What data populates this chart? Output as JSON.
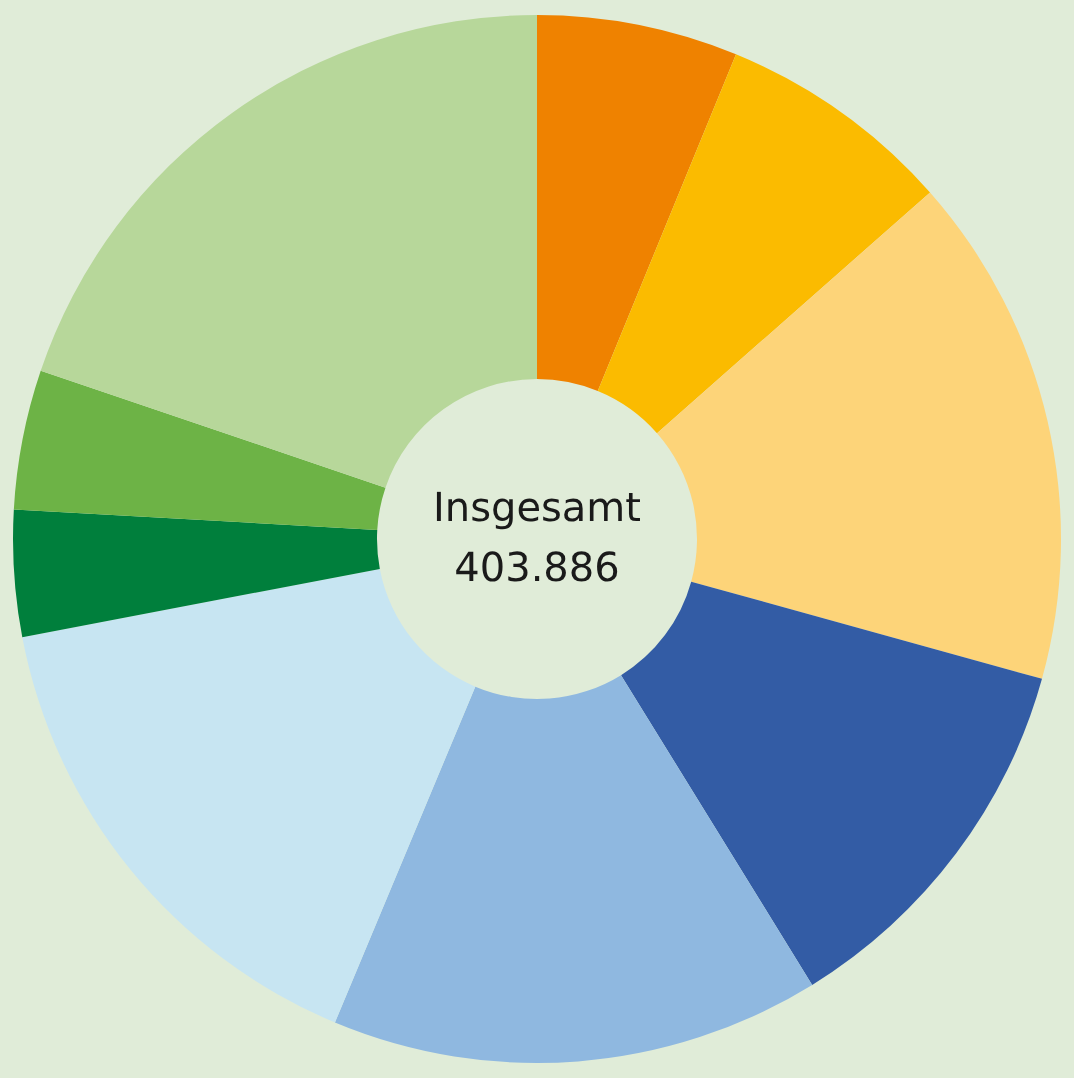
{
  "chart_data": {
    "type": "donut",
    "categories": [
      null,
      null,
      null,
      null,
      null,
      null,
      null,
      null,
      null
    ],
    "values": [
      6.2,
      7.3,
      15.8,
      11.9,
      15.1,
      15.7,
      3.9,
      4.3,
      19.8
    ],
    "colors": [
      "#ef8200",
      "#fbbb00",
      "#fdd479",
      "#335ca5",
      "#8fb8e0",
      "#c7e5f2",
      "#007f3c",
      "#6db346",
      "#b7d79a"
    ],
    "annotations": [
      "Insgesamt",
      "403.886"
    ]
  }
}
